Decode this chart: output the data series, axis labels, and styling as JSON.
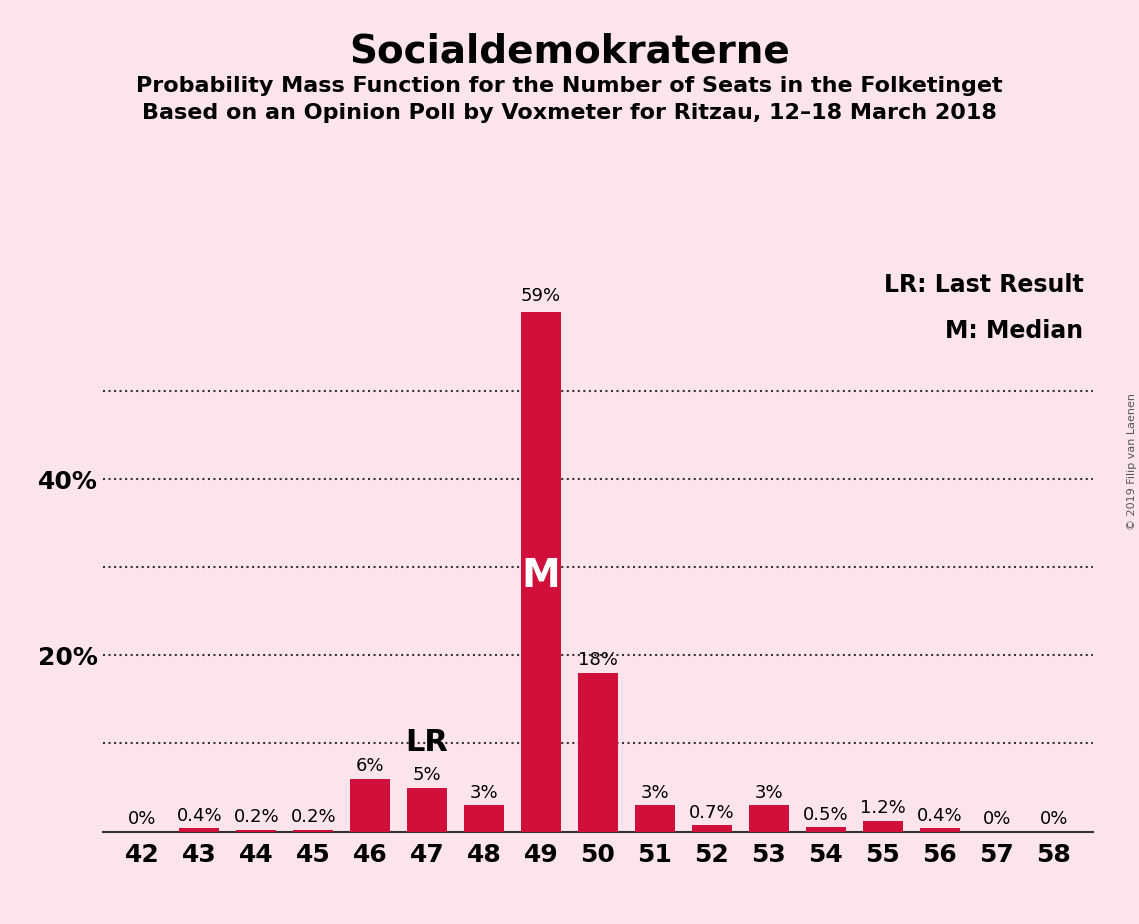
{
  "title": "Socialdemokraterne",
  "subtitle1": "Probability Mass Function for the Number of Seats in the Folketinget",
  "subtitle2": "Based on an Opinion Poll by Voxmeter for Ritzau, 12–18 March 2018",
  "copyright": "© 2019 Filip van Laenen",
  "seats": [
    42,
    43,
    44,
    45,
    46,
    47,
    48,
    49,
    50,
    51,
    52,
    53,
    54,
    55,
    56,
    57,
    58
  ],
  "probabilities": [
    0.0,
    0.4,
    0.2,
    0.2,
    6.0,
    5.0,
    3.0,
    59.0,
    18.0,
    3.0,
    0.7,
    3.0,
    0.5,
    1.2,
    0.4,
    0.0,
    0.0
  ],
  "labels": [
    "0%",
    "0.4%",
    "0.2%",
    "0.2%",
    "6%",
    "5%",
    "3%",
    "59%",
    "18%",
    "3%",
    "0.7%",
    "3%",
    "0.5%",
    "1.2%",
    "0.4%",
    "0%",
    "0%"
  ],
  "bar_color": "#d0103a",
  "background_color": "#fce4ec",
  "median_seat": 49,
  "last_result_seat": 47,
  "legend_lr": "LR: Last Result",
  "legend_m": "M: Median",
  "ylim": [
    0,
    65
  ],
  "grid_lines": [
    10,
    20,
    30,
    40,
    50
  ],
  "ytick_positions": [
    20,
    40
  ],
  "ytick_labels": [
    "20%",
    "40%"
  ],
  "title_fontsize": 28,
  "subtitle_fontsize": 16,
  "tick_fontsize": 18,
  "label_fontsize": 13,
  "lr_fontsize": 22,
  "legend_fontsize": 17,
  "copyright_fontsize": 8
}
